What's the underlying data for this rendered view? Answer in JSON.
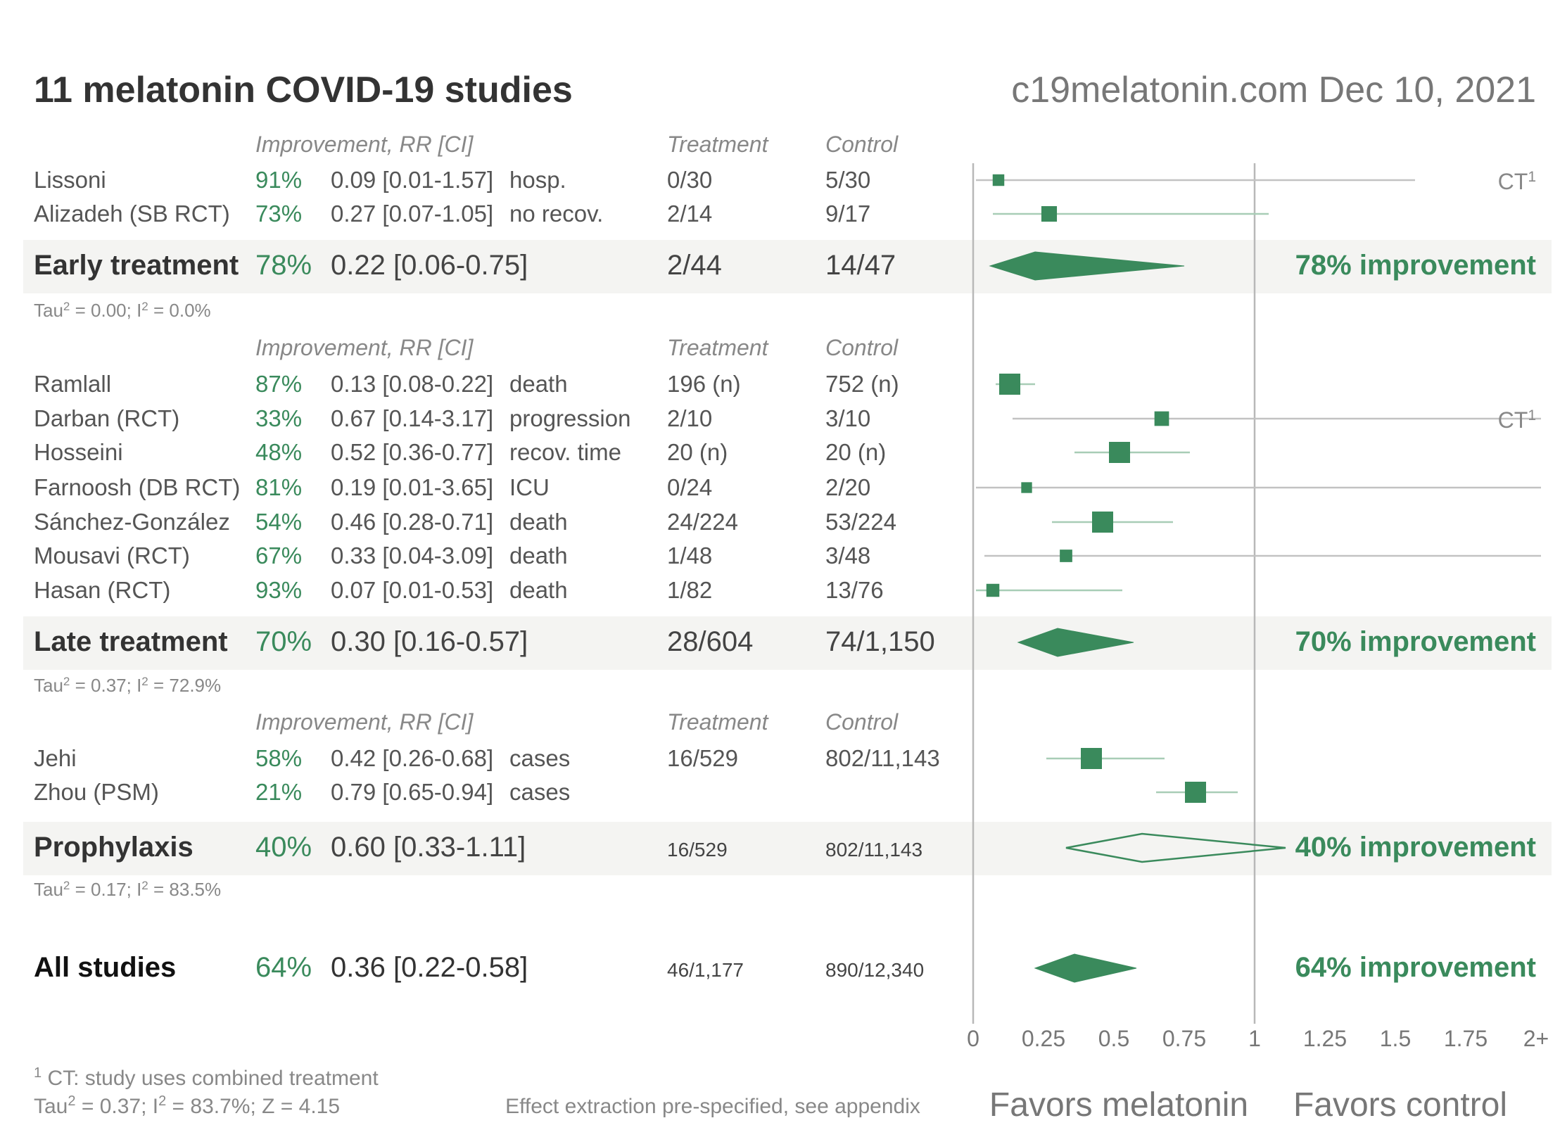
{
  "header": {
    "title": "11 melatonin COVID-19 studies",
    "source": "c19melatonin.com Dec 10, 2021"
  },
  "column_headers": {
    "improvement": "Improvement, RR [CI]",
    "treatment": "Treatment",
    "control": "Control"
  },
  "colors": {
    "accent": "#3a8a5c",
    "text": "#555555",
    "dark": "#333333",
    "axis": "#b8b8b8",
    "band": "#f4f4f2"
  },
  "chart_data": {
    "type": "forest",
    "x_scale": "linear",
    "xlim": [
      0,
      2
    ],
    "ticks": [
      "0",
      "0.25",
      "0.5",
      "0.75",
      "1",
      "1.25",
      "1.5",
      "1.75",
      "2+"
    ],
    "null_line": 1,
    "xlabel_left": "Favors melatonin",
    "xlabel_right": "Favors control",
    "groups": [
      {
        "name": "Early treatment",
        "studies": [
          {
            "study": "Lissoni",
            "improvement": "91%",
            "rr_ci": "0.09 [0.01-1.57]",
            "rr": 0.09,
            "lo": 0.01,
            "hi": 1.57,
            "outcome": "hosp.",
            "treatment": "0/30",
            "control": "5/30",
            "note": "CT",
            "note_sup": "1"
          },
          {
            "study": "Alizadeh (SB RCT)",
            "improvement": "73%",
            "rr_ci": "0.27 [0.07-1.05]",
            "rr": 0.27,
            "lo": 0.07,
            "hi": 1.05,
            "outcome": "no recov.",
            "treatment": "2/14",
            "control": "9/17"
          }
        ],
        "summary": {
          "improvement": "78%",
          "rr_ci": "0.22 [0.06-0.75]",
          "rr": 0.22,
          "lo": 0.06,
          "hi": 0.75,
          "treatment": "2/44",
          "control": "14/47",
          "label": "78% improvement"
        },
        "heterogeneity": {
          "tau2": "0.00",
          "i2": "0.0%"
        }
      },
      {
        "name": "Late treatment",
        "studies": [
          {
            "study": "Ramlall",
            "improvement": "87%",
            "rr_ci": "0.13 [0.08-0.22]",
            "rr": 0.13,
            "lo": 0.08,
            "hi": 0.22,
            "outcome": "death",
            "treatment": "196 (n)",
            "control": "752 (n)"
          },
          {
            "study": "Darban (RCT)",
            "improvement": "33%",
            "rr_ci": "0.67 [0.14-3.17]",
            "rr": 0.67,
            "lo": 0.14,
            "hi": 3.17,
            "outcome": "progression",
            "treatment": "2/10",
            "control": "3/10",
            "note": "CT",
            "note_sup": "1"
          },
          {
            "study": "Hosseini",
            "improvement": "48%",
            "rr_ci": "0.52 [0.36-0.77]",
            "rr": 0.52,
            "lo": 0.36,
            "hi": 0.77,
            "outcome": "recov. time",
            "treatment": "20 (n)",
            "control": "20 (n)"
          },
          {
            "study": "Farnoosh (DB RCT)",
            "improvement": "81%",
            "rr_ci": "0.19 [0.01-3.65]",
            "rr": 0.19,
            "lo": 0.01,
            "hi": 3.65,
            "outcome": "ICU",
            "treatment": "0/24",
            "control": "2/20"
          },
          {
            "study": "Sánchez-González",
            "improvement": "54%",
            "rr_ci": "0.46 [0.28-0.71]",
            "rr": 0.46,
            "lo": 0.28,
            "hi": 0.71,
            "outcome": "death",
            "treatment": "24/224",
            "control": "53/224"
          },
          {
            "study": "Mousavi (RCT)",
            "improvement": "67%",
            "rr_ci": "0.33 [0.04-3.09]",
            "rr": 0.33,
            "lo": 0.04,
            "hi": 3.09,
            "outcome": "death",
            "treatment": "1/48",
            "control": "3/48"
          },
          {
            "study": "Hasan (RCT)",
            "improvement": "93%",
            "rr_ci": "0.07 [0.01-0.53]",
            "rr": 0.07,
            "lo": 0.01,
            "hi": 0.53,
            "outcome": "death",
            "treatment": "1/82",
            "control": "13/76"
          }
        ],
        "summary": {
          "improvement": "70%",
          "rr_ci": "0.30 [0.16-0.57]",
          "rr": 0.3,
          "lo": 0.16,
          "hi": 0.57,
          "treatment": "28/604",
          "control": "74/1,150",
          "label": "70% improvement"
        },
        "heterogeneity": {
          "tau2": "0.37",
          "i2": "72.9%"
        }
      },
      {
        "name": "Prophylaxis",
        "studies": [
          {
            "study": "Jehi",
            "improvement": "58%",
            "rr_ci": "0.42 [0.26-0.68]",
            "rr": 0.42,
            "lo": 0.26,
            "hi": 0.68,
            "outcome": "cases",
            "treatment": "16/529",
            "control": "802/11,143"
          },
          {
            "study": "Zhou (PSM)",
            "improvement": "21%",
            "rr_ci": "0.79 [0.65-0.94]",
            "rr": 0.79,
            "lo": 0.65,
            "hi": 0.94,
            "outcome": "cases",
            "treatment": "",
            "control": ""
          }
        ],
        "summary": {
          "improvement": "40%",
          "rr_ci": "0.60 [0.33-1.11]",
          "rr": 0.6,
          "lo": 0.33,
          "hi": 1.11,
          "treatment": "16/529",
          "control": "802/11,143",
          "label": "40% improvement",
          "open": true
        },
        "heterogeneity": {
          "tau2": "0.17",
          "i2": "83.5%"
        }
      }
    ],
    "overall": {
      "name": "All studies",
      "improvement": "64%",
      "rr_ci": "0.36 [0.22-0.58]",
      "rr": 0.36,
      "lo": 0.22,
      "hi": 0.58,
      "treatment": "46/1,177",
      "control": "890/12,340",
      "label": "64% improvement"
    }
  },
  "footer": {
    "note_sup": "1",
    "note": "CT: study uses combined treatment",
    "overall_stats": {
      "tau2": "0.37",
      "i2": "83.7%",
      "z": "4.15"
    },
    "center": "Effect extraction pre-specified, see appendix"
  }
}
